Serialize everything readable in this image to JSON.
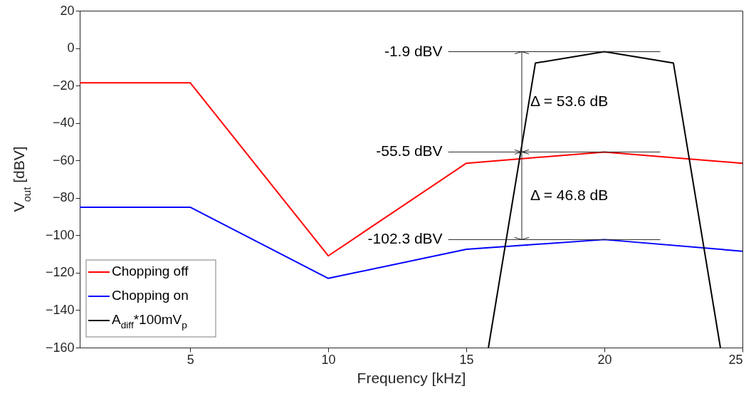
{
  "chart_data": {
    "type": "line",
    "xlabel": "Frequency [kHz]",
    "ylabel": "V$_{out}$ [dBV]",
    "xlim": [
      1,
      25
    ],
    "xticks": [
      5,
      10,
      15,
      20,
      25
    ],
    "ylim": [
      -160,
      20
    ],
    "yticks": [
      20,
      0,
      -20,
      -40,
      -60,
      -80,
      -100,
      -120,
      -140,
      -160
    ],
    "x": [
      1,
      5,
      10,
      15,
      20,
      25
    ],
    "series": [
      {
        "name": "Chopping off",
        "color": "#ff0000",
        "values": [
          -18.5,
          -18.5,
          -111,
          -61.5,
          -55.5,
          -61.5
        ]
      },
      {
        "name": "Chopping on",
        "color": "#0000ff",
        "values": [
          -85,
          -85,
          -123,
          -107.5,
          -102.3,
          -108.5
        ]
      },
      {
        "name": "A$_{diff}$*100mV$_{p}$",
        "color": "#000000",
        "x": [
          15.8,
          17.5,
          20,
          22.5,
          24.2
        ],
        "values": [
          -160,
          -8,
          -1.9,
          -8,
          -160
        ]
      }
    ],
    "ref_lines": [
      {
        "axis": "y",
        "value": -1.9,
        "label": "-1.9 dBV"
      },
      {
        "axis": "y",
        "value": -55.5,
        "label": "-55.5 dBV"
      },
      {
        "axis": "y",
        "value": -102.3,
        "label": "-102.3 dBV"
      }
    ],
    "annotations": [
      "Δ = 53.6 dB",
      "Δ = 46.8 dB"
    ],
    "legend": "bottom left",
    "grid": false,
    "line_style": "solid",
    "marker": "none"
  }
}
